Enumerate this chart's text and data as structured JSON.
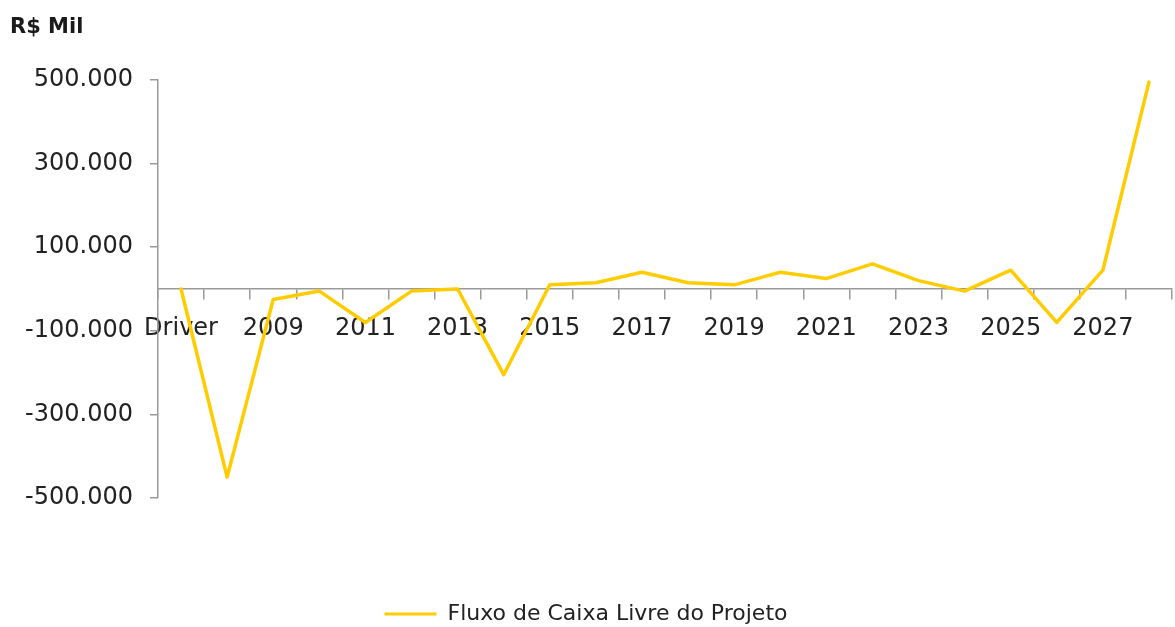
{
  "chart_data": {
    "type": "line",
    "ylabel": "R$ Mil",
    "categories": [
      "Driver",
      null,
      "2009",
      null,
      "2011",
      null,
      "2013",
      null,
      "2015",
      null,
      "2017",
      null,
      "2019",
      null,
      "2021",
      null,
      "2023",
      null,
      "2025",
      null,
      "2027",
      null
    ],
    "series": [
      {
        "name": "Fluxo de Caixa Livre do Projeto",
        "color": "#ffcc00",
        "values": [
          0,
          -450000,
          -25000,
          -5000,
          -80000,
          -5000,
          0,
          -205000,
          10000,
          15000,
          40000,
          15000,
          10000,
          40000,
          25000,
          60000,
          20000,
          -5000,
          45000,
          -80000,
          45000,
          495000
        ]
      }
    ],
    "ylim": [
      -500000,
      500000
    ],
    "yticks": [
      {
        "value": -500000,
        "label": "-500.000"
      },
      {
        "value": -300000,
        "label": "-300.000"
      },
      {
        "value": -100000,
        "label": "-100.000"
      },
      {
        "value": 100000,
        "label": "100.000"
      },
      {
        "value": 300000,
        "label": "300.000"
      },
      {
        "value": 500000,
        "label": "500.000"
      }
    ],
    "grid": false,
    "legend": "bottom",
    "marker": "none",
    "line_style": "solid"
  }
}
